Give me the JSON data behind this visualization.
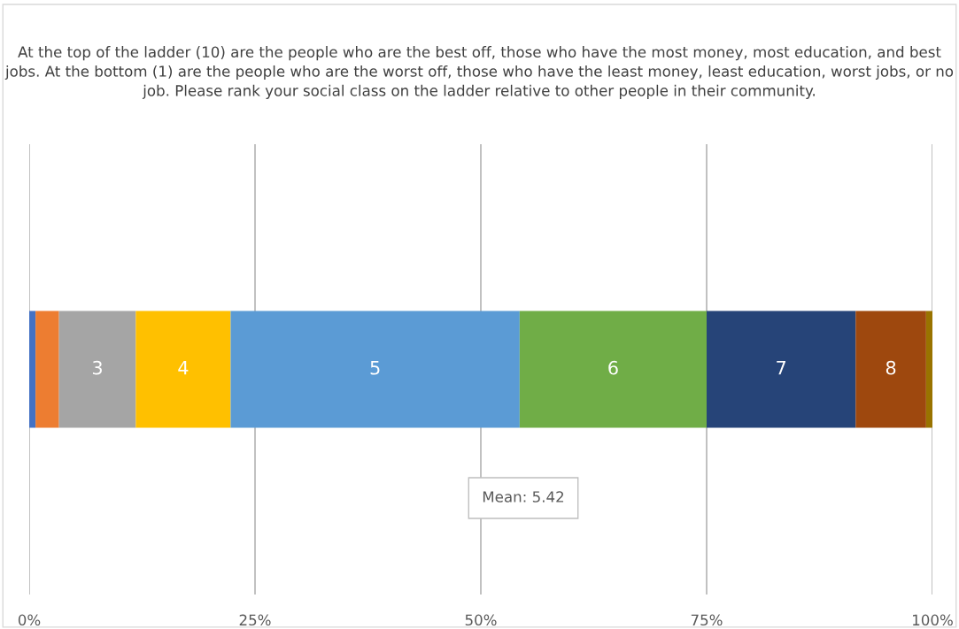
{
  "chart_data": {
    "type": "bar",
    "orientation": "horizontal",
    "stacked": true,
    "title": "At the top of the ladder (10) are the people who are the best off, those who have the most money, most education, and best jobs. At the bottom (1) are the people who are the worst off, those who have the least money, least education, worst jobs, or no job. Please rank your social class on the ladder relative to other people in their community.",
    "categories": [
      null
    ],
    "series": [
      {
        "color": "#4472c4",
        "values": [
          0.7
        ]
      },
      {
        "color": "#ed7d31",
        "values": [
          2.6
        ]
      },
      {
        "name": "3",
        "color": "#a5a5a5",
        "values": [
          8.5
        ]
      },
      {
        "name": "4",
        "color": "#ffc000",
        "values": [
          10.5
        ]
      },
      {
        "name": "5",
        "color": "#5b9bd5",
        "values": [
          32.0
        ]
      },
      {
        "name": "6",
        "color": "#70ad47",
        "values": [
          20.7
        ]
      },
      {
        "name": "7",
        "color": "#264478",
        "values": [
          16.5
        ]
      },
      {
        "name": "8",
        "color": "#9e480e",
        "values": [
          7.8
        ]
      },
      {
        "color": "#997300",
        "values": [
          0.7
        ]
      }
    ],
    "xlim": [
      0,
      100
    ],
    "xticks": [
      {
        "value": 0,
        "label": "0%"
      },
      {
        "value": 25,
        "label": "25%"
      },
      {
        "value": 50,
        "label": "50%"
      },
      {
        "value": 75,
        "label": "75%"
      },
      {
        "value": 100,
        "label": "100%"
      }
    ],
    "grid": "x",
    "tick_labels": "x",
    "annotations": [
      "Mean: 5.42"
    ]
  }
}
